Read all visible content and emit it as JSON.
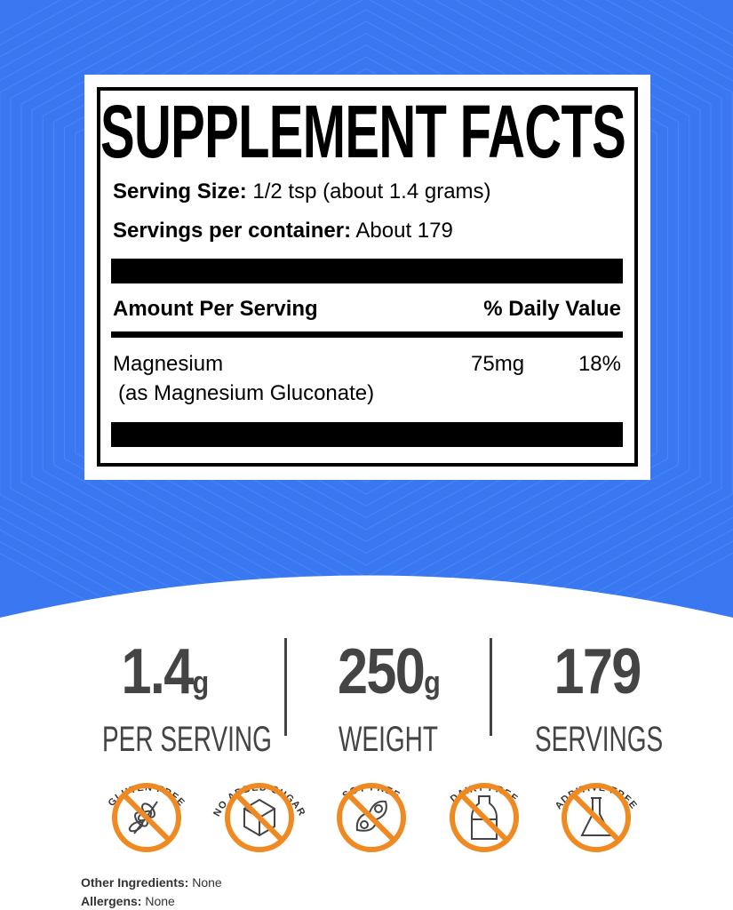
{
  "colors": {
    "background_blue": "#3a78f2",
    "badge_orange": "#ef8a22",
    "text_gray": "#444444"
  },
  "facts": {
    "title": "SUPPLEMENT FACTS",
    "serving_size_label": "Serving Size:",
    "serving_size_value": " 1/2 tsp (about 1.4 grams)",
    "servings_label": "Servings per container:",
    "servings_value": " About 179",
    "amount_header": "Amount Per Serving",
    "dv_header": "% Daily Value",
    "ingredients": [
      {
        "name": "Magnesium",
        "source": "(as Magnesium Gluconate)",
        "amount": "75mg",
        "dv": "18%"
      }
    ]
  },
  "stats": [
    {
      "value": "1.4",
      "unit": "g",
      "label": "PER SERVING"
    },
    {
      "value": "250",
      "unit": "g",
      "label": "WEIGHT"
    },
    {
      "value": "179",
      "unit": "",
      "label": "SERVINGS"
    }
  ],
  "badges": [
    {
      "label": "GLUTEN FREE",
      "icon": "wheat-icon"
    },
    {
      "label": "NO ADDED SUGAR",
      "icon": "sugar-cube-icon"
    },
    {
      "label": "SOY FREE",
      "icon": "soybean-icon"
    },
    {
      "label": "DAIRY FREE",
      "icon": "milk-bottle-icon"
    },
    {
      "label": "ADDITIVE FREE",
      "icon": "flask-icon"
    }
  ],
  "footer": {
    "other_label": "Other Ingredients:",
    "other_value": " None",
    "allergens_label": "Allergens:",
    "allergens_value": " None"
  }
}
